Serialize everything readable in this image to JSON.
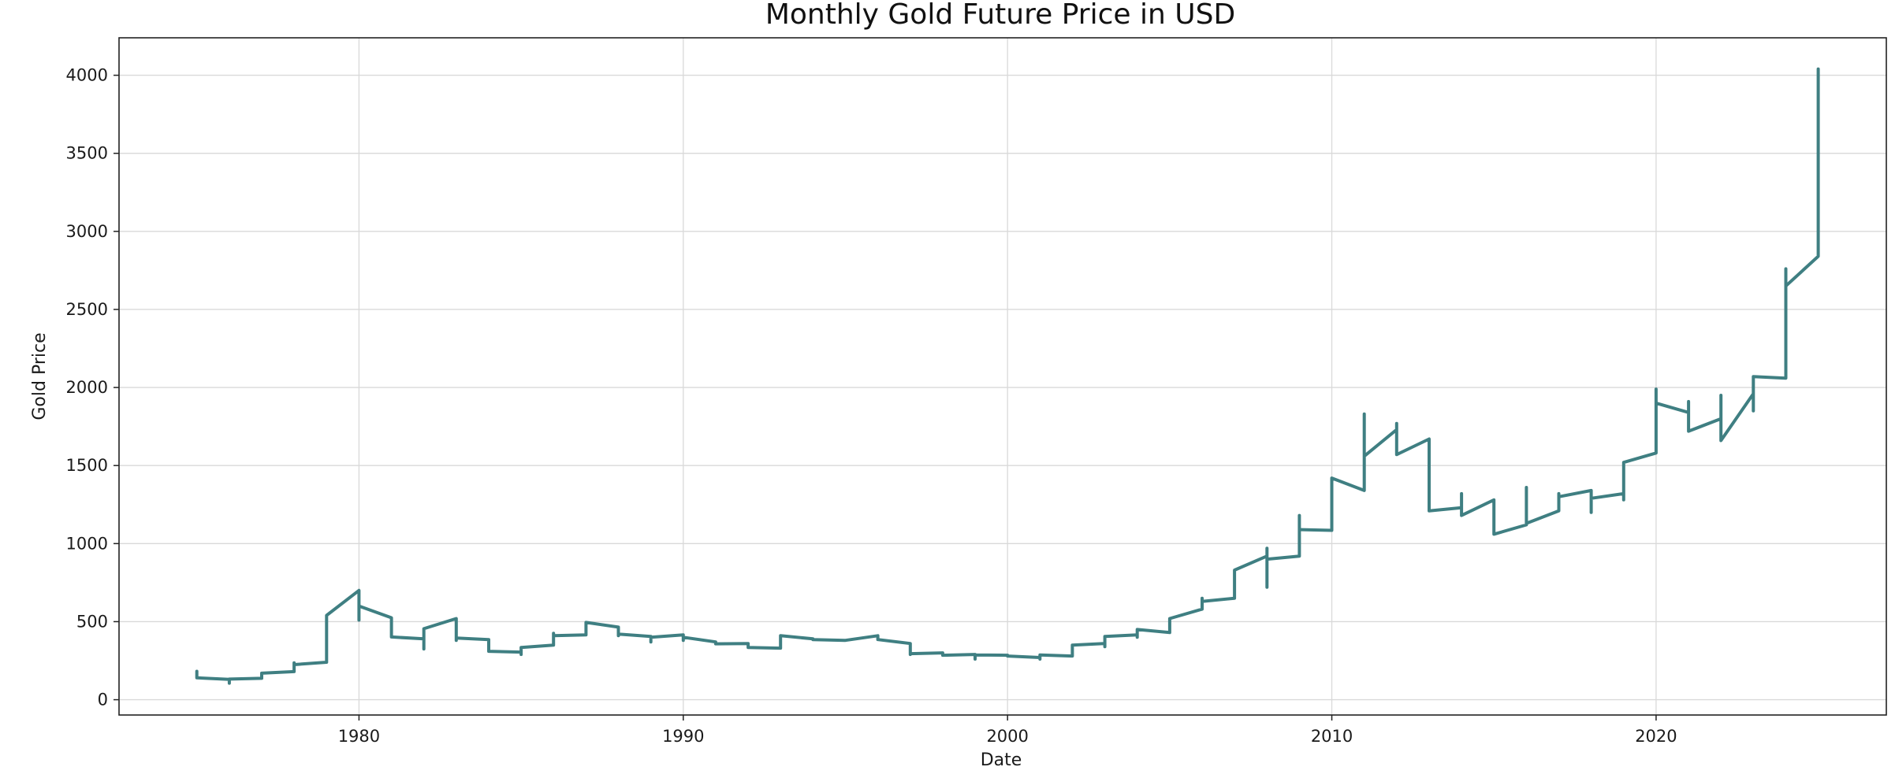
{
  "chart_data": {
    "type": "line",
    "title": "Monthly Gold Future Price in USD",
    "xlabel": "Date",
    "ylabel": "Gold Price",
    "xlim": [
      1972.6,
      2027.1
    ],
    "ylim": [
      -98,
      4240
    ],
    "xticks": [
      1980,
      1990,
      2000,
      2010,
      2020
    ],
    "yticks": [
      0,
      500,
      1000,
      1500,
      2000,
      2500,
      3000,
      3500,
      4000
    ],
    "grid": true,
    "legend": "none",
    "line_color": "#3f7f82",
    "series": [
      {
        "name": "Gold Price",
        "x": [
          1975.0,
          1975.0,
          1975.0,
          1976.0,
          1976.0,
          1976.0,
          1977.0,
          1977.0,
          1978.0,
          1978.0,
          1978.0,
          1979.0,
          1979.0,
          1980.0,
          1980.0,
          1980.0,
          1981.0,
          1981.0,
          1981.0,
          1982.0,
          1982.0,
          1982.0,
          1983.0,
          1983.0,
          1983.0,
          1984.0,
          1984.0,
          1984.0,
          1985.0,
          1985.0,
          1985.0,
          1986.0,
          1986.0,
          1986.0,
          1987.0,
          1987.0,
          1988.0,
          1988.0,
          1988.0,
          1989.0,
          1989.0,
          1989.0,
          1990.0,
          1990.0,
          1990.0,
          1991.0,
          1991.0,
          1992.0,
          1992.0,
          1993.0,
          1993.0,
          1994.0,
          1994.0,
          1995.0,
          1996.0,
          1996.0,
          1997.0,
          1997.0,
          1997.0,
          1998.0,
          1998.0,
          1999.0,
          1999.0,
          1999.0,
          2000.0,
          2000.0,
          2001.0,
          2001.0,
          2001.0,
          2002.0,
          2002.0,
          2002.0,
          2003.0,
          2003.0,
          2003.0,
          2004.0,
          2004.0,
          2004.0,
          2005.0,
          2005.0,
          2006.0,
          2006.0,
          2006.0,
          2007.0,
          2007.0,
          2008.0,
          2008.0,
          2008.0,
          2008.0,
          2009.0,
          2009.0,
          2009.0,
          2010.0,
          2010.0,
          2011.0,
          2011.0,
          2011.0,
          2012.0,
          2012.0,
          2012.0,
          2013.0,
          2013.0,
          2013.0,
          2014.0,
          2014.0,
          2014.0,
          2015.0,
          2015.0,
          2015.0,
          2016.0,
          2016.0,
          2016.0,
          2017.0,
          2017.0,
          2017.0,
          2018.0,
          2018.0,
          2018.0,
          2019.0,
          2019.0,
          2019.0,
          2020.0,
          2020.0,
          2020.0,
          2020.0,
          2021.0,
          2021.0,
          2021.0,
          2022.0,
          2022.0,
          2022.0,
          2023.0,
          2023.0,
          2023.0,
          2023.0,
          2024.0,
          2024.0,
          2024.0,
          2025.0,
          2025.0,
          2025.0
        ],
        "y": [
          182,
          150,
          140,
          130,
          106,
          132,
          137,
          170,
          180,
          236,
          225,
          240,
          540,
          700,
          510,
          600,
          525,
          440,
          402,
          390,
          325,
          455,
          520,
          380,
          395,
          385,
          355,
          310,
          305,
          290,
          335,
          350,
          425,
          410,
          415,
          495,
          465,
          410,
          420,
          405,
          370,
          400,
          415,
          380,
          400,
          370,
          358,
          360,
          335,
          330,
          410,
          390,
          385,
          380,
          410,
          385,
          360,
          290,
          295,
          300,
          285,
          290,
          260,
          287,
          285,
          280,
          270,
          260,
          287,
          280,
          330,
          350,
          360,
          340,
          405,
          415,
          400,
          450,
          430,
          520,
          580,
          650,
          630,
          650,
          830,
          920,
          970,
          720,
          900,
          920,
          1180,
          1090,
          1085,
          1420,
          1340,
          1830,
          1560,
          1730,
          1770,
          1570,
          1670,
          1390,
          1210,
          1230,
          1320,
          1180,
          1280,
          1180,
          1060,
          1120,
          1360,
          1130,
          1210,
          1320,
          1300,
          1340,
          1200,
          1290,
          1320,
          1280,
          1520,
          1580,
          1990,
          1750,
          1900,
          1840,
          1910,
          1720,
          1800,
          1950,
          1660,
          1960,
          2030,
          1850,
          2070,
          2060,
          2760,
          2650,
          2840,
          4040,
          3330
        ]
      }
    ]
  }
}
